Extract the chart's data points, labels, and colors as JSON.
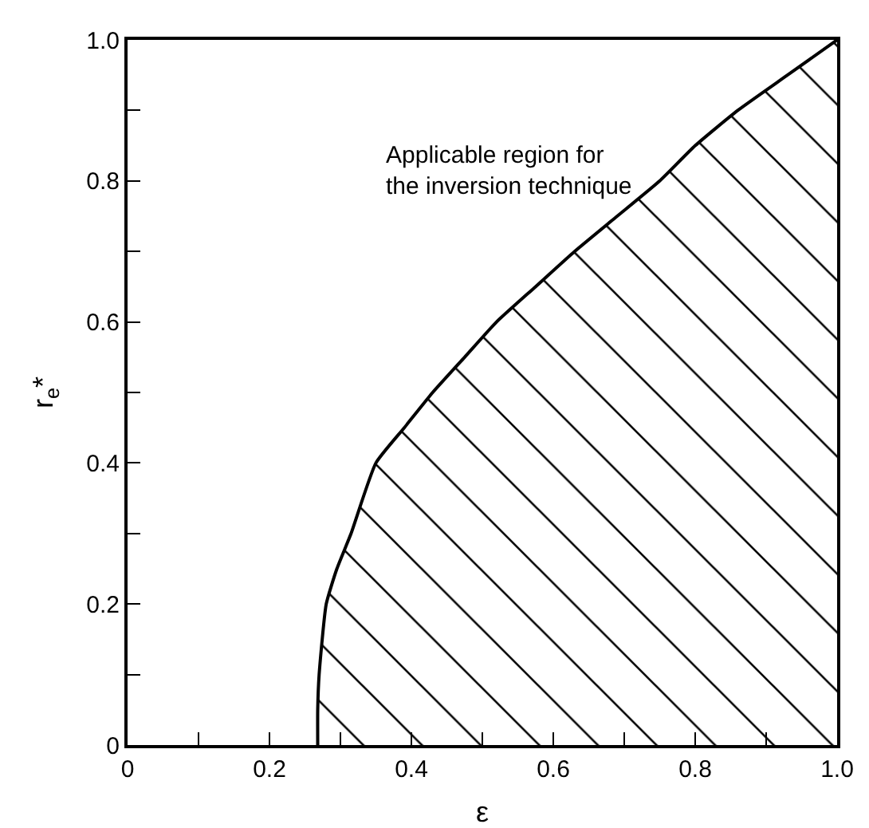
{
  "chart_data": {
    "type": "area",
    "xlabel": "ε",
    "ylabel": "r$_{e}$*",
    "annotations": [
      "Applicable region for\nthe inversion technique"
    ],
    "series": [
      {
        "color": "#000000",
        "x": [
          0.268,
          0.268,
          0.27,
          0.28,
          0.295,
          0.315,
          0.35,
          0.39,
          0.43,
          0.475,
          0.52,
          0.575,
          0.63,
          0.69,
          0.75,
          0.8,
          0.86,
          0.93,
          1.0
        ],
        "values": [
          0,
          0.05,
          0.1,
          0.2,
          0.25,
          0.3,
          0.4,
          0.45,
          0.5,
          0.55,
          0.6,
          0.65,
          0.7,
          0.75,
          0.8,
          0.85,
          0.9,
          0.95,
          1.0
        ]
      }
    ],
    "xlim": [
      0,
      1.0
    ],
    "ylim": [
      0,
      1.0
    ],
    "xticks": [
      0,
      {
        "value": 0.1,
        "label": null
      },
      0.2,
      {
        "value": 0.3,
        "label": null
      },
      0.4,
      {
        "value": 0.5,
        "label": null
      },
      0.6,
      {
        "value": 0.7,
        "label": null
      },
      0.8,
      {
        "value": 0.9,
        "label": null
      },
      {
        "value": 1.0,
        "label": "1.0"
      }
    ],
    "yticks": [
      0,
      {
        "value": 0.1,
        "label": null
      },
      0.2,
      {
        "value": 0.3,
        "label": null
      },
      0.4,
      {
        "value": 0.5,
        "label": null
      },
      0.6,
      {
        "value": 0.7,
        "label": null
      },
      0.8,
      {
        "value": 0.9,
        "label": null
      },
      {
        "value": 1.0,
        "label": "1.0"
      }
    ],
    "grid": false,
    "marker": "none",
    "line_style": "solid"
  }
}
